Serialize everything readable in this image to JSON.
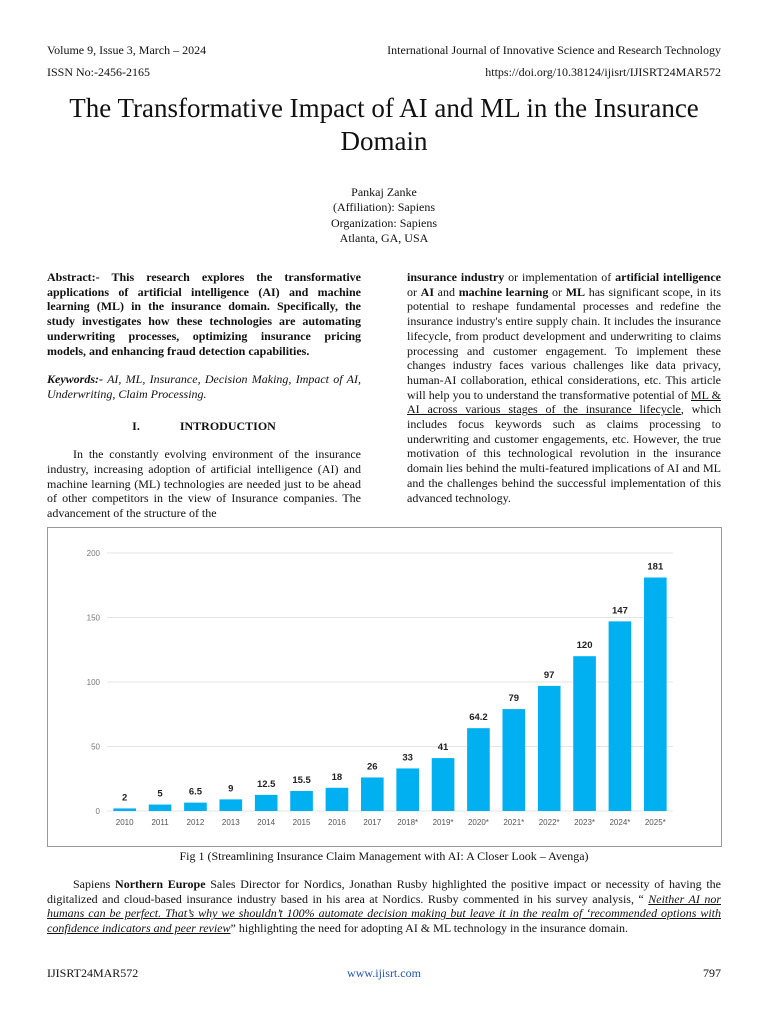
{
  "header": {
    "volume": "Volume 9, Issue 3, March – 2024",
    "journal": "International Journal of Innovative Science and Research Technology",
    "issn": "ISSN No:-2456-2165",
    "doi": "https://doi.org/10.38124/ijisrt/IJISRT24MAR572"
  },
  "title": "The Transformative Impact of AI and ML in the Insurance Domain",
  "authors": [
    "Pankaj Zanke",
    "(Affiliation): Sapiens",
    "Organization: Sapiens",
    "Atlanta, GA, USA"
  ],
  "abstract": {
    "label": "Abstract:-",
    "text": "This research explores the transformative applications of artificial intelligence (AI) and machine learning (ML) in the insurance domain. Specifically, the study investigates how these technologies are automating underwriting processes, optimizing insurance pricing models, and enhancing fraud detection capabilities."
  },
  "keywords": {
    "label": "Keywords:-",
    "text": "AI, ML, Insurance, Decision Making, Impact of AI, Underwriting, Claim Processing."
  },
  "section": {
    "number": "I.",
    "title": "INTRODUCTION"
  },
  "intro_left": "In the constantly evolving environment of the insurance industry, increasing adoption of artificial intelligence (AI) and machine learning (ML) technologies are needed just to be ahead of other competitors in the view of Insurance companies. The advancement of the structure of the",
  "intro_right": {
    "runs": [
      {
        "text": "insurance industry",
        "bold": true
      },
      {
        "text": " or implementation of "
      },
      {
        "text": "artificial intelligence",
        "bold": true
      },
      {
        "text": " or "
      },
      {
        "text": "AI",
        "bold": true
      },
      {
        "text": " and "
      },
      {
        "text": "machine learning",
        "bold": true
      },
      {
        "text": " or "
      },
      {
        "text": "ML",
        "bold": true
      },
      {
        "text": " has significant scope, in its potential to reshape fundamental processes and redefine the insurance industry's entire supply chain. It includes the insurance lifecycle, from product development and underwriting to claims processing and customer engagement. To implement these changes industry faces various challenges like data privacy, human-AI collaboration, ethical considerations, etc. This article will help you to understand the transformative potential of "
      },
      {
        "text": "ML & AI across various stages of the insurance lifecycle",
        "underline": true
      },
      {
        "text": ", which includes focus keywords such as claims processing to underwriting and customer engagements, etc. However, the true motivation of this technological revolution in the insurance domain lies behind the multi-featured implications of AI and ML and the challenges behind the successful implementation of this advanced technology."
      }
    ]
  },
  "chart_data": {
    "type": "bar",
    "categories": [
      "2010",
      "2011",
      "2012",
      "2013",
      "2014",
      "2015",
      "2016",
      "2017",
      "2018*",
      "2019*",
      "2020*",
      "2021*",
      "2022*",
      "2023*",
      "2024*",
      "2025*"
    ],
    "values": [
      2,
      5,
      6.5,
      9,
      12.5,
      15.5,
      18,
      26,
      33,
      41,
      64.2,
      79,
      97,
      120,
      147,
      181
    ],
    "color": "#00b0f0",
    "ylim": [
      0,
      200
    ],
    "yticks": [
      0,
      50,
      100,
      150,
      200
    ],
    "grid": true
  },
  "caption": "Fig 1 (Streamlining Insurance Claim Management with AI: A Closer Look – Avenga)",
  "closing": {
    "runs": [
      {
        "text": "Sapiens "
      },
      {
        "text": "Northern Europe",
        "bold": true
      },
      {
        "text": " Sales Director for Nordics, Jonathan Rusby highlighted the positive impact or necessity of having the digitalized and cloud-based insurance industry based in his area at Nordics. Rusby commented in his survey analysis, “ "
      },
      {
        "text": "Neither AI nor humans can be perfect. That’s why we shouldn’t 100% automate decision making but leave it in the realm of ‘recommended options with confidence indicators and peer review",
        "italic": true,
        "underline": true
      },
      {
        "text": "” highlighting the need for adopting AI & ML technology in the insurance domain."
      }
    ]
  },
  "footer": {
    "id": "IJISRT24MAR572",
    "site": "www.ijisrt.com",
    "page": "797"
  }
}
